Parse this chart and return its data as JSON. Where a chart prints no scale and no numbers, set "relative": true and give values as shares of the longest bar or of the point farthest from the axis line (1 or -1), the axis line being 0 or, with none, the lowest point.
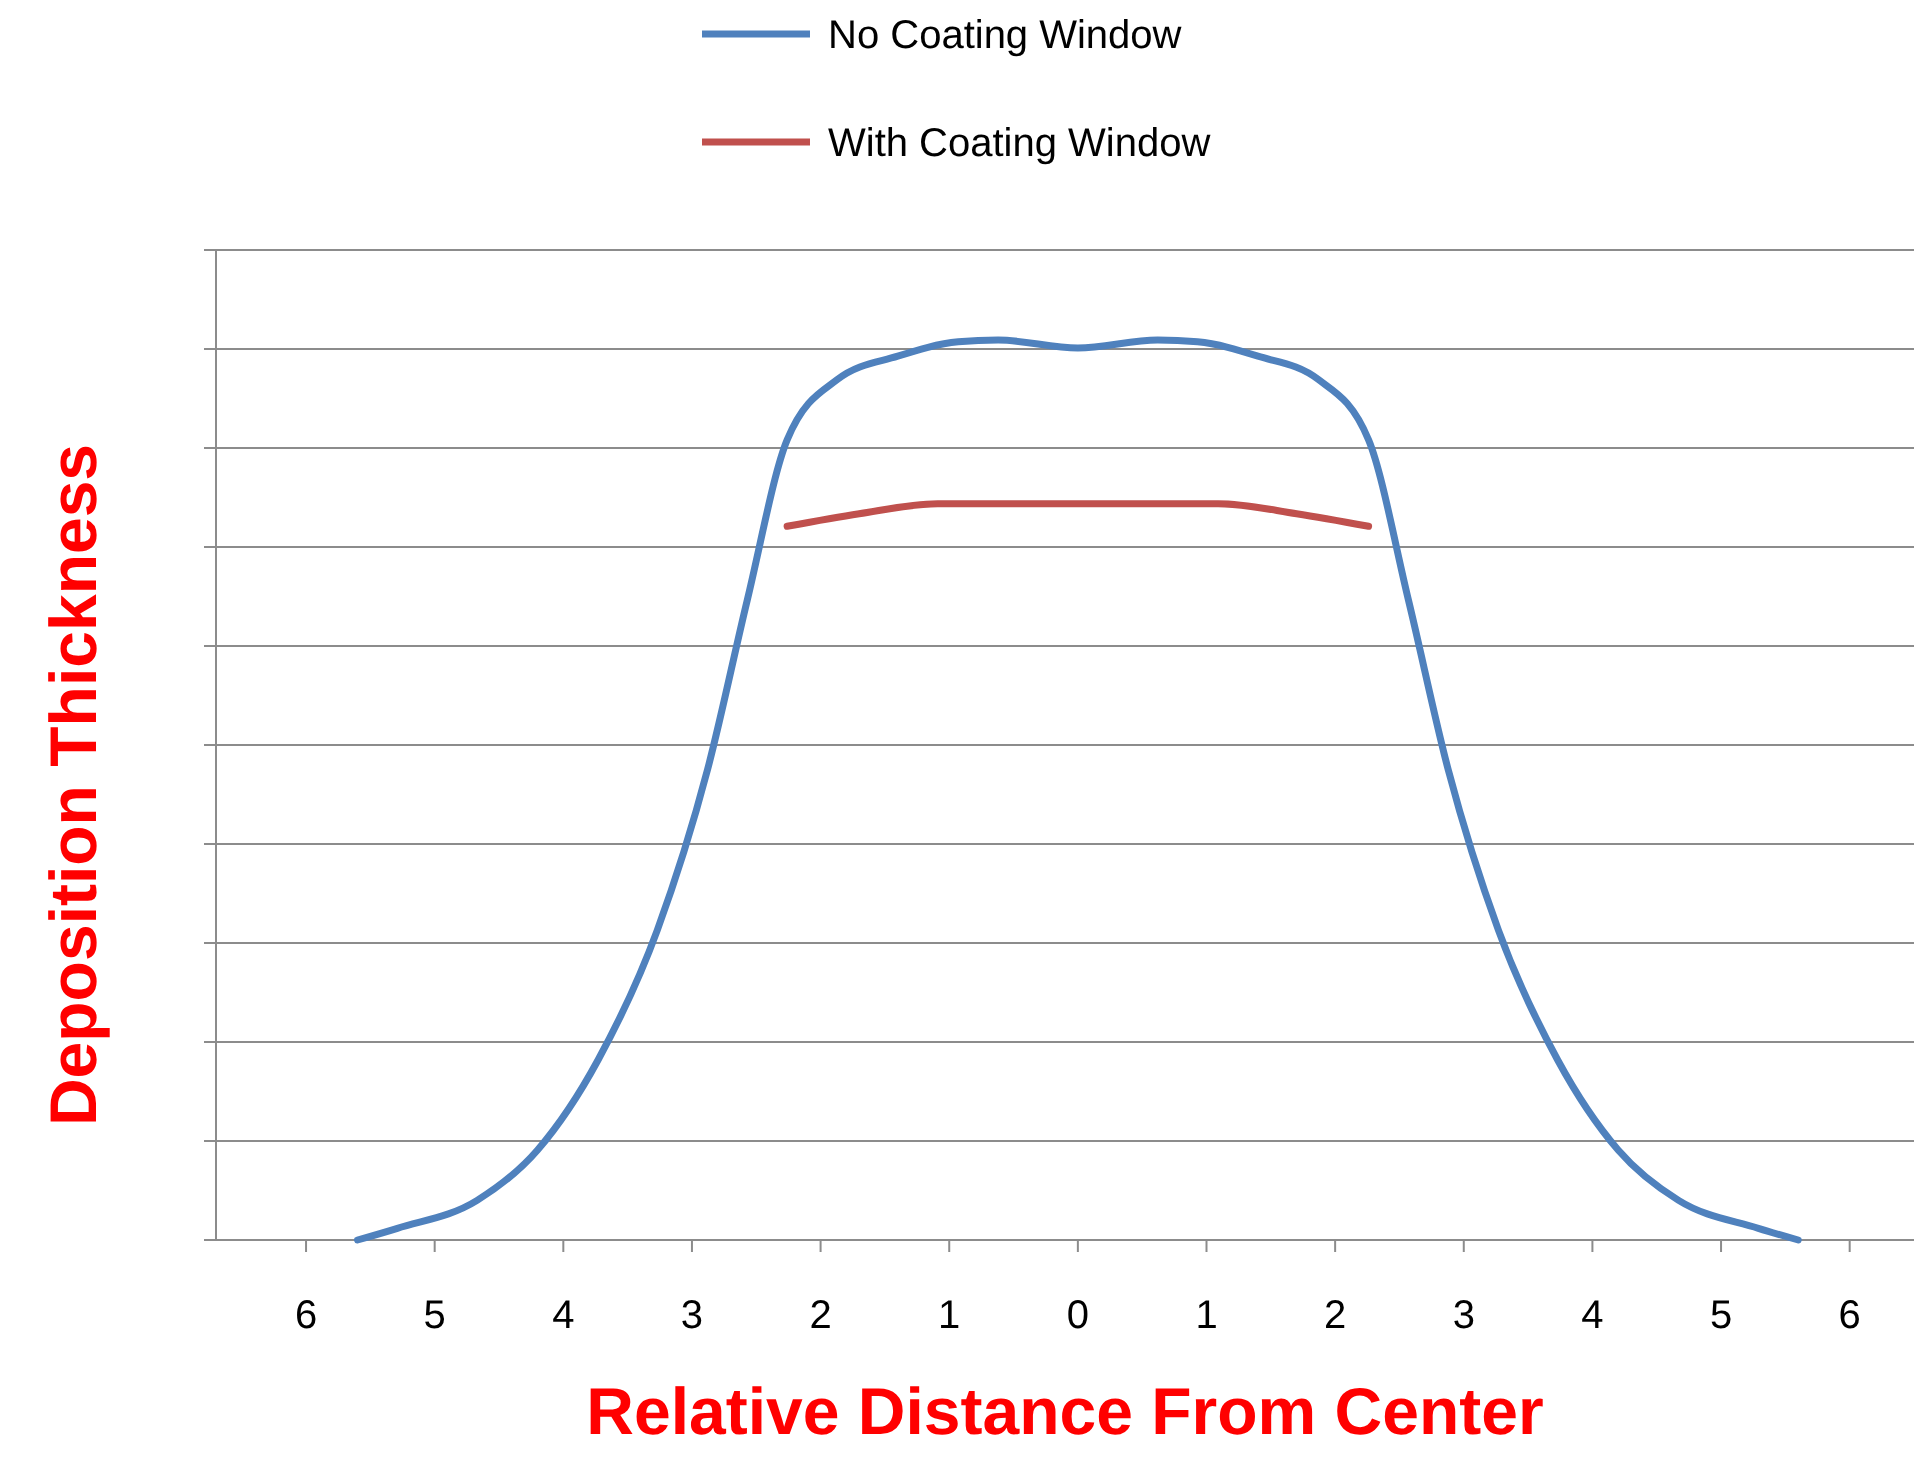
{
  "chart_data": {
    "type": "line",
    "xlabel": "Relative Distance From Center",
    "ylabel": "Deposition Thickness",
    "relative": true,
    "grid": "y",
    "legend": "top",
    "marker": "none",
    "line_style": "solid",
    "xlim": [
      -6.7,
      6.5
    ],
    "xticks": [
      {
        "value": -6,
        "label": "6"
      },
      {
        "value": -5,
        "label": "5"
      },
      {
        "value": -4,
        "label": "4"
      },
      {
        "value": -3,
        "label": "3"
      },
      {
        "value": -2,
        "label": "2"
      },
      {
        "value": -1,
        "label": "1"
      },
      0,
      1,
      2,
      3,
      4,
      5,
      6
    ],
    "series": [
      {
        "name": "No Coating Window",
        "color": "#4f81bd",
        "x": [
          -5.6,
          -5.29,
          -4.67,
          -4.2,
          -3.73,
          -3.27,
          -2.88,
          -2.57,
          -2.26,
          -1.87,
          -1.4,
          -0.93,
          -0.62,
          0,
          0.62,
          0.93,
          1.4,
          1.87,
          2.26,
          2.57,
          2.88,
          3.27,
          3.73,
          4.2,
          4.67,
          5.29,
          5.6
        ],
        "values": [
          0,
          0.013,
          0.044,
          0.1,
          0.2,
          0.344,
          0.522,
          0.711,
          0.889,
          0.956,
          0.982,
          0.998,
          1,
          0.991,
          1,
          0.998,
          0.982,
          0.956,
          0.889,
          0.711,
          0.522,
          0.344,
          0.2,
          0.1,
          0.044,
          0.013,
          0
        ]
      },
      {
        "name": "With Coating Window",
        "color": "#c0504d",
        "x": [
          -2.26,
          -1.7,
          -1.09,
          0,
          1.09,
          1.7,
          2.26
        ],
        "values": [
          0.793,
          0.807,
          0.818,
          0.818,
          0.818,
          0.807,
          0.793
        ]
      }
    ]
  }
}
